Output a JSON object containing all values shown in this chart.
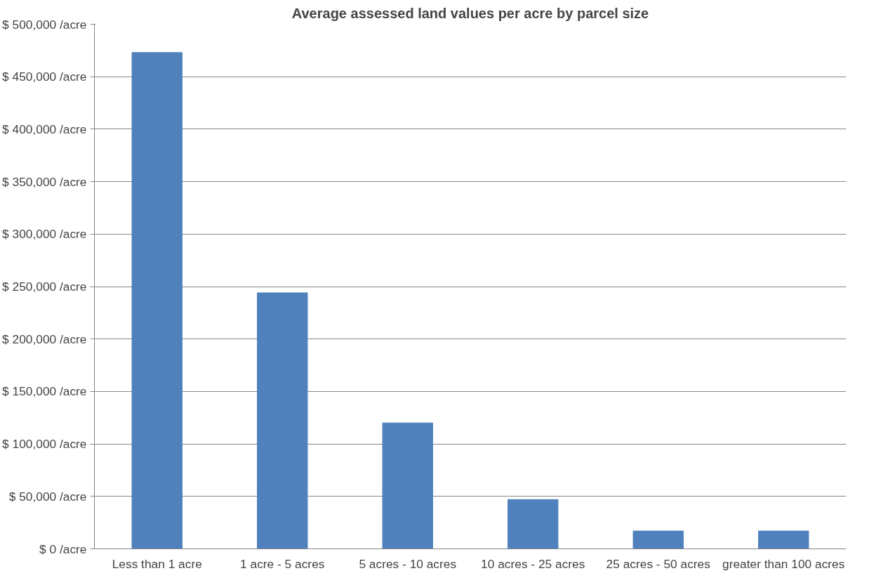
{
  "chart_data": {
    "type": "bar",
    "title": "Average assessed land values per acre by parcel size",
    "categories": [
      "Less than 1 acre",
      "1 acre - 5 acres",
      "5 acres - 10 acres",
      "10 acres - 25 acres",
      "25 acres - 50 acres",
      "greater than 100 acres"
    ],
    "values": [
      473000,
      244000,
      120000,
      47000,
      17000,
      17000
    ],
    "color": "#4f81bd",
    "ylim": [
      0,
      500000
    ],
    "yticks": [
      {
        "value": 0,
        "label": "$ 0 /acre"
      },
      {
        "value": 50000,
        "label": "$ 50,000 /acre"
      },
      {
        "value": 100000,
        "label": "$ 100,000 /acre"
      },
      {
        "value": 150000,
        "label": "$ 150,000 /acre"
      },
      {
        "value": 200000,
        "label": "$ 200,000 /acre"
      },
      {
        "value": 250000,
        "label": "$ 250,000 /acre"
      },
      {
        "value": 300000,
        "label": "$ 300,000 /acre"
      },
      {
        "value": 350000,
        "label": "$ 350,000 /acre"
      },
      {
        "value": 400000,
        "label": "$ 400,000 /acre"
      },
      {
        "value": 450000,
        "label": "$ 450,000 /acre"
      },
      {
        "value": 500000,
        "label": "$ 500,000 /acre"
      }
    ],
    "grid": "y"
  }
}
